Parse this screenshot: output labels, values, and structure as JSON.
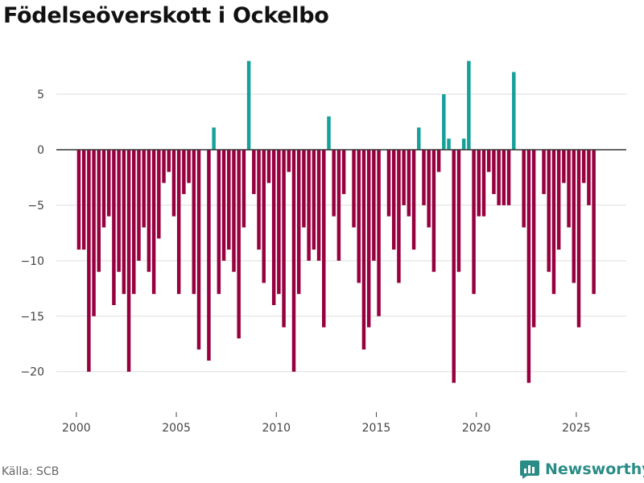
{
  "title": "Födelseöverskott i Ockelbo",
  "source": "Källa: SCB",
  "brand": {
    "name": "Newsworthy",
    "icon": "newsworthy-logo-icon",
    "color": "#2a8c86"
  },
  "colors": {
    "positive": "#16a09a",
    "negative": "#97003e",
    "grid": "#dddddd",
    "zero": "#333333"
  },
  "chart_data": {
    "type": "bar",
    "title": "Födelseöverskott i Ockelbo",
    "xlabel": "",
    "ylabel": "",
    "ylim": [
      -23.5,
      9.5
    ],
    "xlim": [
      1999,
      2027.5
    ],
    "x_ticks": [
      2000,
      2005,
      2010,
      2015,
      2020,
      2025
    ],
    "y_ticks": [
      5,
      0,
      -5,
      -10,
      -15,
      -20
    ],
    "y_tick_labels": [
      "5",
      "0",
      "−5",
      "−10",
      "−15",
      "−20"
    ],
    "grid": true,
    "series": [
      {
        "name": "Födelseöverskott",
        "start": 2000.0,
        "step": 0.25,
        "values": [
          -9,
          -9,
          -20,
          -15,
          -11,
          -7,
          -6,
          -14,
          -11,
          -13,
          -20,
          -13,
          -10,
          -7,
          -11,
          -13,
          -8,
          -3,
          -2,
          -6,
          -13,
          -4,
          -3,
          -13,
          -18,
          0,
          -19,
          2,
          -13,
          -10,
          -9,
          -11,
          -17,
          -7,
          8,
          -4,
          -9,
          -12,
          -3,
          -14,
          -13,
          -16,
          -2,
          -20,
          -13,
          -7,
          -10,
          -9,
          -10,
          -16,
          3,
          -6,
          -10,
          -4,
          0,
          -7,
          -12,
          -18,
          -16,
          -10,
          -15,
          0,
          -6,
          -9,
          -12,
          -5,
          -6,
          -9,
          2,
          -5,
          -7,
          -11,
          -2,
          5,
          1,
          -21,
          -11,
          1,
          8,
          -13,
          -6,
          -6,
          -2,
          -4,
          -5,
          -5,
          -5,
          7,
          0,
          -7,
          -21,
          -16,
          0,
          -4,
          -11,
          -13,
          -9,
          -3,
          -7,
          -12,
          -16,
          -3,
          -5,
          -13
        ]
      }
    ]
  }
}
